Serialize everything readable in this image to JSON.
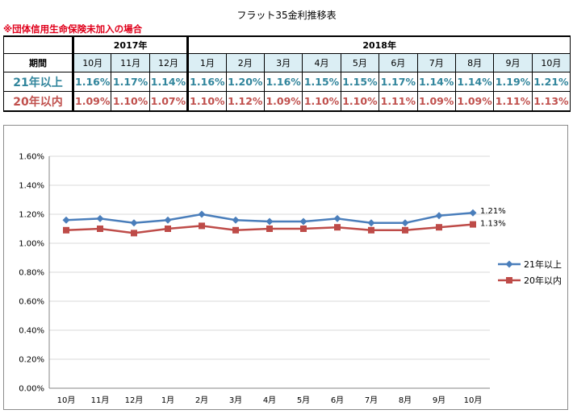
{
  "title": "フラット35金利推移表",
  "note": "※団体信用生命保険未加入の場合",
  "table": {
    "period_label": "期間",
    "year_groups": [
      {
        "label": "2017年",
        "span": 3
      },
      {
        "label": "2018年",
        "span": 10
      }
    ],
    "months": [
      "10月",
      "11月",
      "12月",
      "1月",
      "2月",
      "3月",
      "4月",
      "5月",
      "6月",
      "7月",
      "8月",
      "9月",
      "10月"
    ],
    "rows": [
      {
        "label": "21年以上",
        "values": [
          "1.16%",
          "1.17%",
          "1.14%",
          "1.16%",
          "1.20%",
          "1.16%",
          "1.15%",
          "1.15%",
          "1.17%",
          "1.14%",
          "1.14%",
          "1.19%",
          "1.21%"
        ]
      },
      {
        "label": "20年以内",
        "values": [
          "1.09%",
          "1.10%",
          "1.07%",
          "1.10%",
          "1.12%",
          "1.09%",
          "1.10%",
          "1.10%",
          "1.11%",
          "1.09%",
          "1.09%",
          "1.11%",
          "1.13%"
        ]
      }
    ]
  },
  "chart_data": {
    "type": "line",
    "categories": [
      "10月",
      "11月",
      "12月",
      "1月",
      "2月",
      "3月",
      "4月",
      "5月",
      "6月",
      "7月",
      "8月",
      "9月",
      "10月"
    ],
    "y_ticks": [
      "0.00%",
      "0.20%",
      "0.40%",
      "0.60%",
      "0.80%",
      "1.00%",
      "1.20%",
      "1.40%",
      "1.60%"
    ],
    "ylim": [
      0,
      1.6
    ],
    "grid": true,
    "legend_position": "right",
    "series": [
      {
        "name": "21年以上",
        "color": "#4a7ebb",
        "marker": "diamond",
        "values": [
          1.16,
          1.17,
          1.14,
          1.16,
          1.2,
          1.16,
          1.15,
          1.15,
          1.17,
          1.14,
          1.14,
          1.19,
          1.21
        ],
        "end_label": "1.21%"
      },
      {
        "name": "20年以内",
        "color": "#be4b48",
        "marker": "square",
        "values": [
          1.09,
          1.1,
          1.07,
          1.1,
          1.12,
          1.09,
          1.1,
          1.1,
          1.11,
          1.09,
          1.09,
          1.11,
          1.13
        ],
        "end_label": "1.13%"
      }
    ]
  }
}
